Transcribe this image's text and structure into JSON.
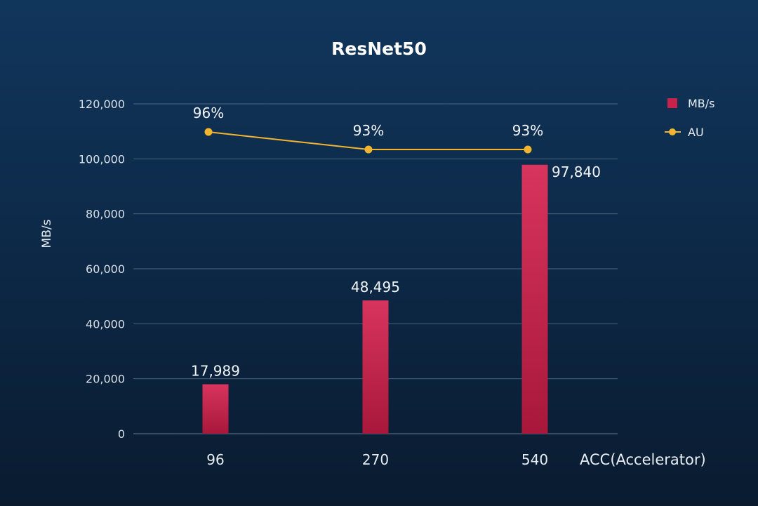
{
  "chart_data": {
    "type": "bar",
    "title": "ResNet50",
    "xlabel": "ACC(Accelerator)",
    "ylabel": "MB/s",
    "categories": [
      "96",
      "270",
      "540"
    ],
    "ylim": [
      0,
      120000
    ],
    "yticks": [
      0,
      20000,
      40000,
      60000,
      80000,
      100000,
      120000
    ],
    "ytick_labels": [
      "0",
      "20,000",
      "40,000",
      "60,000",
      "80,000",
      "100,000",
      "120,000"
    ],
    "grid": true,
    "legend_position": "top-right",
    "series": [
      {
        "name": "MB/s",
        "type": "bar",
        "values": [
          17989,
          48495,
          97840
        ],
        "labels": [
          "17,989",
          "48,495",
          "97,840"
        ],
        "color": "#c8234a"
      },
      {
        "name": "AU",
        "type": "line",
        "values": [
          96,
          93,
          93
        ],
        "labels": [
          "96%",
          "93%",
          "93%"
        ],
        "unit": "%",
        "color": "#f2b530"
      }
    ]
  }
}
